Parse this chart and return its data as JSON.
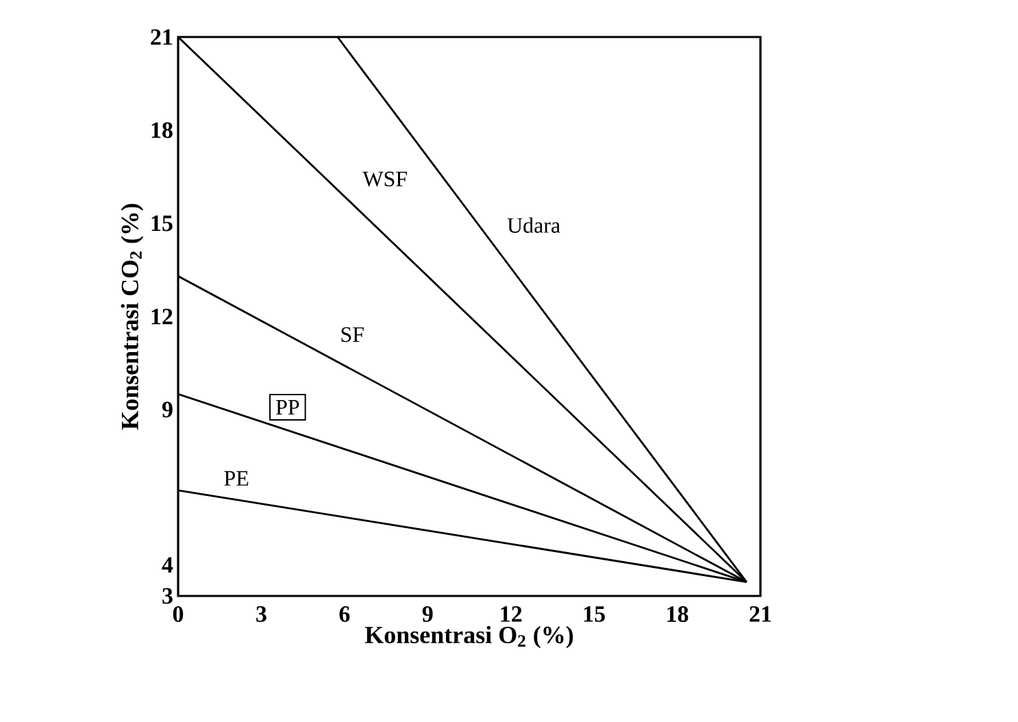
{
  "chart_data": {
    "type": "line",
    "xlabel": "Konsentrasi O$_{2}$ (%)",
    "ylabel": "Konsentrasi CO$_{2}$ (%)",
    "xlim": [
      0,
      21
    ],
    "ylim": [
      3,
      21
    ],
    "xticks": [
      0,
      3,
      6,
      9,
      12,
      15,
      18,
      21
    ],
    "yticks": [
      3,
      4,
      9,
      12,
      15,
      18,
      21
    ],
    "series": [
      {
        "name": "PE",
        "color": "#000000",
        "x": [
          0,
          20.5
        ],
        "values": [
          6.4,
          3.45
        ]
      },
      {
        "name": "PP",
        "color": "#000000",
        "x": [
          0,
          20.5
        ],
        "values": [
          9.5,
          3.45
        ]
      },
      {
        "name": "SF",
        "color": "#000000",
        "x": [
          0,
          20.5
        ],
        "values": [
          13.3,
          3.45
        ]
      },
      {
        "name": "WSF",
        "color": "#000000",
        "x": [
          0,
          20.5
        ],
        "values": [
          21,
          3.45
        ]
      },
      {
        "name": "Udara",
        "color": "#000000",
        "x": [
          5.75,
          20.5
        ],
        "values": [
          21,
          3.45
        ]
      }
    ],
    "grid": false,
    "legend": false,
    "marker": "none",
    "line_style": "solid"
  }
}
